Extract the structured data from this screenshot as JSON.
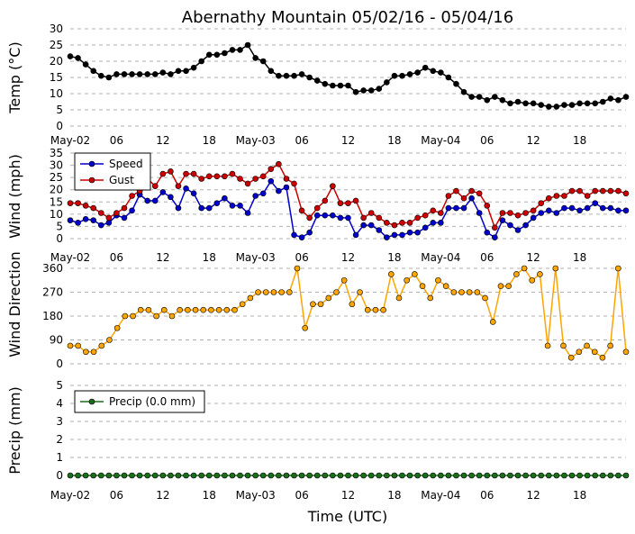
{
  "chart_data": [
    {
      "type": "line",
      "id": "temp",
      "title": "Abernathy Mountain 05/02/16 - 05/04/16",
      "ylabel": "Temp (°C)",
      "ylim": [
        0,
        30
      ],
      "yticks": [
        "0",
        "5",
        "10",
        "15",
        "20",
        "25",
        "30"
      ],
      "xticks": [
        "May-02",
        "06",
        "12",
        "18",
        "May-03",
        "06",
        "12",
        "18",
        "May-04",
        "06",
        "12",
        "18"
      ],
      "grid": true,
      "series": [
        {
          "color": "#000000",
          "values": [
            21.5,
            21,
            19,
            17,
            15.5,
            15,
            16,
            16,
            16,
            16,
            16,
            16,
            16.5,
            16,
            17,
            17,
            18,
            20,
            22,
            22,
            22.5,
            23.5,
            23.5,
            25,
            21,
            20,
            17,
            15.5,
            15.5,
            15.5,
            16,
            15,
            14,
            13,
            12.5,
            12.5,
            12.5,
            10.5,
            11,
            11,
            11.5,
            13.5,
            15.5,
            15.5,
            16,
            16.5,
            18,
            17,
            16.5,
            15,
            13,
            10.5,
            9,
            9,
            8,
            9,
            8,
            7,
            7.5,
            7,
            7,
            6.5,
            6,
            6,
            6.5,
            6.5,
            7,
            7,
            7,
            7.5,
            8.5,
            8,
            9
          ]
        }
      ]
    },
    {
      "type": "line",
      "id": "wind",
      "ylabel": "Wind (mph)",
      "ylim": [
        0,
        35
      ],
      "yticks": [
        "0",
        "5",
        "10",
        "15",
        "20",
        "25",
        "30",
        "35"
      ],
      "xticks": [
        "May-02",
        "06",
        "12",
        "18",
        "May-03",
        "06",
        "12",
        "18",
        "May-04",
        "06",
        "12",
        "18"
      ],
      "grid": true,
      "legend": "top-left",
      "series": [
        {
          "name": "Speed",
          "color": "#0000cc",
          "values": [
            7.5,
            6.5,
            8,
            7.5,
            5.5,
            6.5,
            9.5,
            8.5,
            11.5,
            18,
            15.5,
            15.5,
            19,
            17,
            12.5,
            20.5,
            18.5,
            12.5,
            12.5,
            14.5,
            16.5,
            13.5,
            13.5,
            10.5,
            17.5,
            18.5,
            23.5,
            19.5,
            21,
            1.5,
            0.5,
            2.5,
            9.5,
            9.5,
            9.5,
            8.5,
            8.5,
            1.5,
            5.5,
            5.5,
            3.5,
            0.5,
            1.5,
            1.5,
            2.5,
            2.5,
            4.5,
            6.5,
            6.5,
            12.5,
            12.5,
            12.5,
            16.5,
            10.5,
            2.5,
            0.5,
            7.5,
            5.5,
            3.5,
            5.5,
            8.5,
            10.5,
            11.5,
            10.5,
            12.5,
            12.5,
            11.5,
            12.5,
            14.5,
            12.5,
            12.5,
            11.5,
            11.5
          ]
        },
        {
          "name": "Gust",
          "color": "#cc0000",
          "values": [
            14.5,
            14.5,
            13.5,
            12.5,
            10.5,
            8.5,
            10.5,
            12.5,
            17.5,
            19.5,
            24.5,
            21.5,
            26.5,
            27.5,
            21.5,
            26.5,
            26.5,
            24.5,
            25.5,
            25.5,
            25.5,
            26.5,
            24.5,
            22.5,
            24.5,
            25.5,
            28.5,
            30.5,
            24.5,
            22.5,
            11.5,
            8.5,
            12.5,
            15.5,
            21.5,
            14.5,
            14.5,
            15.5,
            8.5,
            10.5,
            8.5,
            6.5,
            5.5,
            6.5,
            6.5,
            8.5,
            9.5,
            11.5,
            10.5,
            17.5,
            19.5,
            16.5,
            19.5,
            18.5,
            13.5,
            4.5,
            10.5,
            10.5,
            9.5,
            10.5,
            11.5,
            14.5,
            16.5,
            17.5,
            17.5,
            19.5,
            19.5,
            17.5,
            19.5,
            19.5,
            19.5,
            19.5,
            18.5
          ]
        }
      ]
    },
    {
      "type": "line",
      "id": "direction",
      "ylabel": "Wind Direction",
      "ylim": [
        0,
        360
      ],
      "yticks": [
        "0",
        "90",
        "180",
        "270",
        "360"
      ],
      "xticks": [
        "May-02",
        "06",
        "12",
        "18",
        "May-03",
        "06",
        "12",
        "18",
        "May-04",
        "06",
        "12",
        "18"
      ],
      "grid": true,
      "series": [
        {
          "color": "#ffa500",
          "values": [
            68,
            68,
            45,
            45,
            68,
            90,
            135,
            180,
            180,
            203,
            203,
            180,
            203,
            180,
            203,
            203,
            203,
            203,
            203,
            203,
            203,
            203,
            225,
            248,
            270,
            270,
            270,
            270,
            270,
            360,
            135,
            225,
            225,
            248,
            270,
            315,
            225,
            270,
            203,
            203,
            203,
            338,
            248,
            315,
            338,
            293,
            248,
            315,
            293,
            270,
            270,
            270,
            270,
            248,
            158,
            293,
            293,
            338,
            360,
            315,
            338,
            68,
            360,
            68,
            23,
            45,
            68,
            45,
            23,
            68,
            360,
            45
          ]
        }
      ]
    },
    {
      "type": "line",
      "id": "precip",
      "ylabel": "Precip (mm)",
      "xlabel": "Time (UTC)",
      "ylim": [
        0,
        5
      ],
      "yticks": [
        "0",
        "1",
        "2",
        "3",
        "4",
        "5"
      ],
      "xticks": [
        "May-02",
        "06",
        "12",
        "18",
        "May-03",
        "06",
        "12",
        "18",
        "May-04",
        "06",
        "12",
        "18"
      ],
      "grid": true,
      "legend": "top-left",
      "series": [
        {
          "name": "Precip (0.0 mm)",
          "color": "#1a6e1a",
          "values": [
            0,
            0,
            0,
            0,
            0,
            0,
            0,
            0,
            0,
            0,
            0,
            0,
            0,
            0,
            0,
            0,
            0,
            0,
            0,
            0,
            0,
            0,
            0,
            0,
            0,
            0,
            0,
            0,
            0,
            0,
            0,
            0,
            0,
            0,
            0,
            0,
            0,
            0,
            0,
            0,
            0,
            0,
            0,
            0,
            0,
            0,
            0,
            0,
            0,
            0,
            0,
            0,
            0,
            0,
            0,
            0,
            0,
            0,
            0,
            0,
            0,
            0,
            0,
            0,
            0,
            0,
            0,
            0,
            0,
            0,
            0,
            0,
            0
          ]
        }
      ]
    }
  ]
}
